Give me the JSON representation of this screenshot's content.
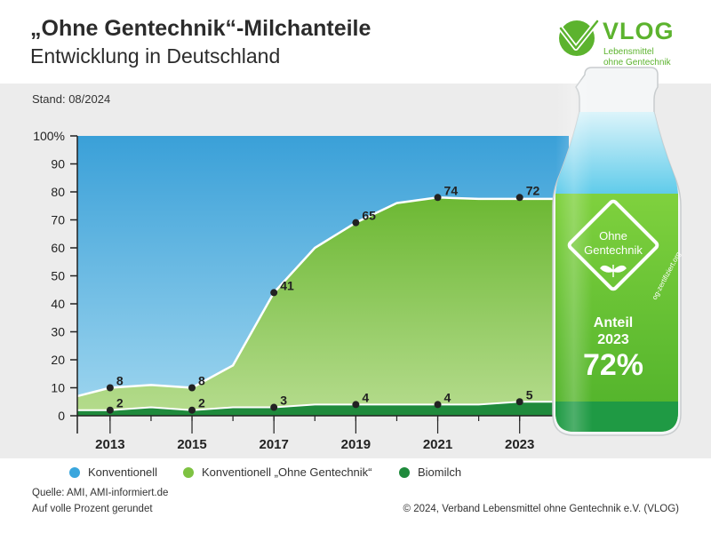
{
  "header": {
    "title": "„Ohne Gentechnik“-Milchanteile",
    "subtitle": "Entwicklung in Deutschland",
    "stand": "Stand: 08/2024"
  },
  "logo": {
    "name": "VLOG",
    "line1": "Lebensmittel",
    "line2": "ohne Gentechnik",
    "color": "#5cb32e"
  },
  "bottle": {
    "seal_line1": "Ohne",
    "seal_line2": "Gentechnik",
    "seal_url": "og-zertifiziert.org",
    "label_line1": "Anteil",
    "label_line2": "2023",
    "label_value": "72%"
  },
  "legend": [
    {
      "label": "Konventionell",
      "color": "#3aa6dd"
    },
    {
      "label": "Konventionell „Ohne Gentechnik“",
      "color": "#7ec242"
    },
    {
      "label": "Biomilch",
      "color": "#1f8a3c"
    }
  ],
  "footer": {
    "source": "Quelle: AMI, AMI-informiert.de",
    "note": "Auf volle Prozent gerundet",
    "copyright": "© 2024, Verband Lebensmittel ohne Gentechnik e.V. (VLOG)"
  },
  "chart_data": {
    "type": "area",
    "title": "„Ohne Gentechnik“-Milchanteile",
    "subtitle": "Entwicklung in Deutschland",
    "ylim": [
      0,
      100
    ],
    "yticks": [
      0,
      10,
      20,
      30,
      40,
      50,
      60,
      70,
      80,
      90,
      100
    ],
    "ytick_labels": [
      "0",
      "10",
      "20",
      "30",
      "40",
      "50",
      "60",
      "70",
      "80",
      "90",
      "100%"
    ],
    "xlim": [
      2012.2,
      2024.2
    ],
    "xtick_labels": [
      "2013",
      "2015",
      "2017",
      "2019",
      "2021",
      "2023"
    ],
    "x": [
      2012,
      2013,
      2014,
      2015,
      2016,
      2017,
      2018,
      2019,
      2020,
      2021,
      2022,
      2023,
      2024
    ],
    "series": [
      {
        "name": "Konventionell „Ohne Gentechnik“",
        "color": "#7ec242",
        "values": [
          7,
          10,
          11,
          10,
          18,
          44,
          60,
          69,
          76,
          78,
          77.5,
          77.5,
          77.5
        ]
      },
      {
        "name": "Biomilch",
        "color": "#1f8a3c",
        "values": [
          2,
          2,
          3,
          2,
          3,
          3,
          4,
          4,
          4,
          4,
          4,
          5,
          5
        ]
      }
    ],
    "total_top": 100,
    "total_color": "#3aa6dd",
    "annotations": [
      {
        "x": 2013,
        "y": 10,
        "label": "8"
      },
      {
        "x": 2015,
        "y": 10,
        "label": "8"
      },
      {
        "x": 2017,
        "y": 44,
        "label": "41"
      },
      {
        "x": 2019,
        "y": 69,
        "label": "65"
      },
      {
        "x": 2021,
        "y": 78,
        "label": "74"
      },
      {
        "x": 2023,
        "y": 78,
        "label": "72"
      },
      {
        "x": 2013,
        "y": 2,
        "label": "2"
      },
      {
        "x": 2015,
        "y": 2,
        "label": "2"
      },
      {
        "x": 2017,
        "y": 3,
        "label": "3"
      },
      {
        "x": 2019,
        "y": 4,
        "label": "4"
      },
      {
        "x": 2021,
        "y": 4,
        "label": "4"
      },
      {
        "x": 2023,
        "y": 5,
        "label": "5"
      }
    ],
    "grid": false,
    "legend_position": "bottom"
  }
}
